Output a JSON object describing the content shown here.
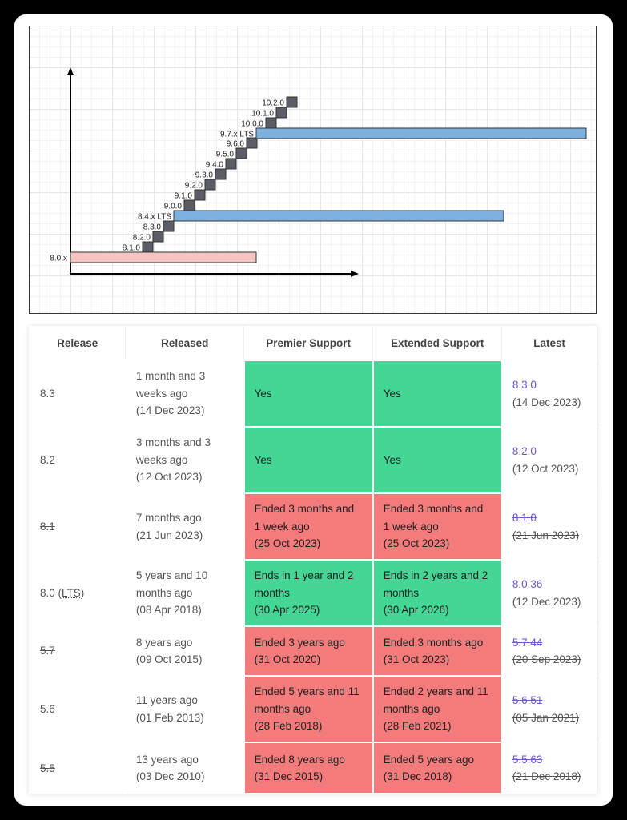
{
  "diagram": {
    "labels": [
      "8.0.x",
      "8.1.0",
      "8.2.0",
      "8.3.0",
      "8.4.x LTS",
      "9.0.0",
      "9.1.0",
      "9.2.0",
      "9.3.0",
      "9.4.0",
      "9.5.0",
      "9.6.0",
      "9.7.x LTS",
      "10.0.0",
      "10.1.0",
      "10.2.0"
    ],
    "colors": {
      "lts": "#7eb0de",
      "eol": "#f7c4c4",
      "release": "#5a5c66"
    }
  },
  "table": {
    "headers": [
      "Release",
      "Released",
      "Premier Support",
      "Extended Support",
      "Latest"
    ],
    "rows": [
      {
        "release": "8.3",
        "eol": false,
        "released": [
          "1 month and 3",
          "weeks ago",
          "(14 Dec 2023)"
        ],
        "premier": [
          "Yes"
        ],
        "premier_ok": true,
        "extended": [
          "Yes"
        ],
        "extended_ok": true,
        "latest": "8.3.0",
        "latest_date": "(14 Dec 2023)"
      },
      {
        "release": "8.2",
        "eol": false,
        "released": [
          "3 months and 3",
          "weeks ago",
          "(12 Oct 2023)"
        ],
        "premier": [
          "Yes"
        ],
        "premier_ok": true,
        "extended": [
          "Yes"
        ],
        "extended_ok": true,
        "latest": "8.2.0",
        "latest_date": "(12 Oct 2023)"
      },
      {
        "release": "8.1",
        "eol": true,
        "released": [
          "7 months ago",
          "(21 Jun 2023)"
        ],
        "premier": [
          "Ended 3 months and",
          "1 week ago",
          "(25 Oct 2023)"
        ],
        "premier_ok": false,
        "extended": [
          "Ended 3 months and",
          "1 week ago",
          "(25 Oct 2023)"
        ],
        "extended_ok": false,
        "latest": "8.1.0",
        "latest_date": "(21 Jun 2023)"
      },
      {
        "release": "8.0",
        "release_suffix": "LTS",
        "eol": false,
        "released": [
          "5 years and 10",
          "months ago",
          "(08 Apr 2018)"
        ],
        "premier": [
          "Ends in 1 year and 2",
          "months",
          "(30 Apr 2025)"
        ],
        "premier_ok": true,
        "extended": [
          "Ends in 2 years and 2",
          "months",
          "(30 Apr 2026)"
        ],
        "extended_ok": true,
        "latest": "8.0.36",
        "latest_date": "(12 Dec 2023)"
      },
      {
        "release": "5.7",
        "eol": true,
        "released": [
          "8 years ago",
          "(09 Oct 2015)"
        ],
        "premier": [
          "Ended 3 years ago",
          "(31 Oct 2020)"
        ],
        "premier_ok": false,
        "extended": [
          "Ended 3 months ago",
          "(31 Oct 2023)"
        ],
        "extended_ok": false,
        "latest": "5.7.44",
        "latest_date": "(20 Sep 2023)"
      },
      {
        "release": "5.6",
        "eol": true,
        "released": [
          "11 years ago",
          "(01 Feb 2013)"
        ],
        "premier": [
          "Ended 5 years and 11",
          "months ago",
          "(28 Feb 2018)"
        ],
        "premier_ok": false,
        "extended": [
          "Ended 2 years and 11",
          "months ago",
          "(28 Feb 2021)"
        ],
        "extended_ok": false,
        "latest": "5.6.51",
        "latest_date": "(05 Jan 2021)"
      },
      {
        "release": "5.5",
        "eol": true,
        "released": [
          "13 years ago",
          "(03 Dec 2010)"
        ],
        "premier": [
          "Ended 8 years ago",
          "(31 Dec 2015)"
        ],
        "premier_ok": false,
        "extended": [
          "Ended 5 years ago",
          "(31 Dec 2018)"
        ],
        "extended_ok": false,
        "latest": "5.5.63",
        "latest_date": "(21 Dec 2018)"
      }
    ]
  }
}
